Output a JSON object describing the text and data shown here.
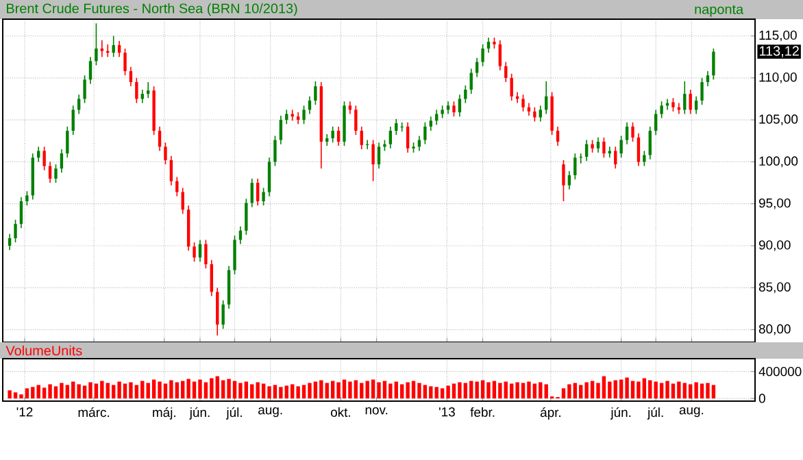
{
  "chart_data": [
    {
      "type": "candlestick",
      "title": "Brent Crude Futures - North Sea (BRN 10/2013)",
      "annotations": [
        "naponta",
        "113,12"
      ],
      "x": [
        "2011-12-19",
        "2011-12-24",
        "2011-12-29",
        "2012-01-03",
        "2012-01-08",
        "2012-01-13",
        "2012-01-18",
        "2012-01-23",
        "2012-01-28",
        "2012-02-02",
        "2012-02-07",
        "2012-02-12",
        "2012-02-17",
        "2012-02-22",
        "2012-02-27",
        "2012-03-03",
        "2012-03-08",
        "2012-03-13",
        "2012-03-18",
        "2012-03-23",
        "2012-03-28",
        "2012-04-02",
        "2012-04-07",
        "2012-04-12",
        "2012-04-17",
        "2012-04-22",
        "2012-04-27",
        "2012-05-02",
        "2012-05-07",
        "2012-05-12",
        "2012-05-17",
        "2012-05-22",
        "2012-05-27",
        "2012-06-01",
        "2012-06-06",
        "2012-06-11",
        "2012-06-16",
        "2012-06-21",
        "2012-06-26",
        "2012-07-01",
        "2012-07-06",
        "2012-07-11",
        "2012-07-16",
        "2012-07-21",
        "2012-07-26",
        "2012-07-31",
        "2012-08-05",
        "2012-08-10",
        "2012-08-15",
        "2012-08-20",
        "2012-08-25",
        "2012-08-30",
        "2012-09-04",
        "2012-09-09",
        "2012-09-14",
        "2012-09-19",
        "2012-09-24",
        "2012-09-29",
        "2012-10-04",
        "2012-10-09",
        "2012-10-14",
        "2012-10-19",
        "2012-10-24",
        "2012-10-29",
        "2012-11-03",
        "2012-11-08",
        "2012-11-13",
        "2012-11-18",
        "2012-11-23",
        "2012-11-28",
        "2012-12-03",
        "2012-12-08",
        "2012-12-13",
        "2012-12-18",
        "2012-12-23",
        "2012-12-28",
        "2013-01-02",
        "2013-01-07",
        "2013-01-12",
        "2013-01-17",
        "2013-01-22",
        "2013-01-27",
        "2013-02-01",
        "2013-02-06",
        "2013-02-11",
        "2013-02-16",
        "2013-02-21",
        "2013-02-26",
        "2013-03-03",
        "2013-03-08",
        "2013-03-13",
        "2013-03-18",
        "2013-03-23",
        "2013-03-28",
        "2013-04-02",
        "2013-04-07",
        "2013-04-12",
        "2013-04-17",
        "2013-04-22",
        "2013-04-27",
        "2013-05-02",
        "2013-05-07",
        "2013-05-12",
        "2013-05-17",
        "2013-05-22",
        "2013-05-27",
        "2013-06-01",
        "2013-06-06",
        "2013-06-11",
        "2013-06-16",
        "2013-06-21",
        "2013-06-26",
        "2013-07-01",
        "2013-07-06",
        "2013-07-11",
        "2013-07-16",
        "2013-07-21",
        "2013-07-26",
        "2013-07-31",
        "2013-08-05",
        "2013-08-10",
        "2013-08-15",
        "2013-08-20"
      ],
      "ohlc": [
        [
          90.0,
          91.4,
          89.5,
          90.9
        ],
        [
          90.9,
          93.1,
          90.4,
          92.6
        ],
        [
          92.6,
          95.8,
          92.1,
          95.3
        ],
        [
          95.3,
          96.5,
          94.8,
          96.0
        ],
        [
          96.0,
          101.0,
          95.5,
          100.5
        ],
        [
          100.5,
          101.8,
          100.0,
          101.3
        ],
        [
          101.3,
          101.8,
          99.0,
          99.5
        ],
        [
          99.5,
          100.0,
          97.5,
          98.0
        ],
        [
          98.0,
          99.7,
          97.5,
          99.2
        ],
        [
          99.2,
          101.5,
          98.7,
          101.0
        ],
        [
          101.0,
          104.2,
          100.5,
          103.7
        ],
        [
          103.7,
          106.7,
          103.2,
          106.2
        ],
        [
          106.2,
          108.0,
          105.7,
          107.5
        ],
        [
          107.5,
          110.3,
          107.0,
          109.8
        ],
        [
          109.8,
          112.5,
          109.3,
          112.0
        ],
        [
          112.0,
          116.5,
          111.5,
          113.5
        ],
        [
          113.5,
          114.5,
          112.5,
          113.2
        ],
        [
          113.2,
          114.0,
          112.5,
          113.0
        ],
        [
          113.0,
          115.0,
          112.5,
          113.9
        ],
        [
          113.9,
          114.4,
          112.5,
          113.0
        ],
        [
          113.0,
          113.5,
          110.3,
          110.8
        ],
        [
          110.8,
          111.3,
          109.0,
          109.5
        ],
        [
          109.5,
          110.0,
          107.0,
          107.5
        ],
        [
          107.5,
          108.6,
          107.0,
          108.1
        ],
        [
          108.1,
          109.5,
          107.6,
          108.5
        ],
        [
          108.5,
          109.0,
          103.2,
          103.7
        ],
        [
          103.7,
          104.2,
          101.3,
          101.8
        ],
        [
          101.8,
          102.3,
          99.7,
          100.2
        ],
        [
          100.2,
          100.7,
          97.2,
          97.7
        ],
        [
          97.7,
          98.2,
          95.9,
          96.4
        ],
        [
          96.4,
          96.9,
          93.8,
          94.3
        ],
        [
          94.3,
          94.8,
          89.4,
          89.9
        ],
        [
          89.9,
          90.4,
          88.1,
          88.6
        ],
        [
          88.6,
          90.7,
          88.1,
          90.2
        ],
        [
          90.2,
          90.7,
          87.3,
          87.8
        ],
        [
          87.8,
          88.3,
          84.0,
          84.5
        ],
        [
          84.5,
          85.0,
          79.3,
          80.6
        ],
        [
          80.6,
          83.5,
          80.1,
          83.0
        ],
        [
          83.0,
          87.6,
          82.5,
          87.1
        ],
        [
          87.1,
          91.2,
          86.6,
          90.7
        ],
        [
          90.7,
          92.3,
          90.2,
          91.8
        ],
        [
          91.8,
          95.6,
          91.3,
          95.1
        ],
        [
          95.1,
          98.0,
          94.6,
          97.5
        ],
        [
          97.5,
          98.0,
          94.8,
          95.3
        ],
        [
          95.3,
          96.9,
          94.8,
          96.4
        ],
        [
          96.4,
          100.5,
          95.9,
          100.0
        ],
        [
          100.0,
          103.1,
          99.5,
          102.6
        ],
        [
          102.6,
          105.5,
          102.1,
          105.0
        ],
        [
          105.0,
          106.2,
          104.5,
          105.7
        ],
        [
          105.7,
          106.2,
          104.9,
          105.4
        ],
        [
          105.4,
          105.9,
          104.5,
          105.0
        ],
        [
          105.0,
          106.7,
          104.5,
          106.2
        ],
        [
          106.2,
          107.8,
          105.7,
          107.3
        ],
        [
          107.3,
          109.6,
          106.8,
          109.0
        ],
        [
          109.0,
          109.5,
          99.2,
          102.4
        ],
        [
          102.4,
          103.3,
          101.9,
          102.8
        ],
        [
          102.8,
          104.2,
          102.3,
          103.7
        ],
        [
          103.7,
          104.2,
          101.9,
          102.4
        ],
        [
          102.4,
          107.2,
          101.9,
          106.7
        ],
        [
          106.7,
          107.2,
          105.7,
          106.2
        ],
        [
          106.2,
          106.7,
          103.2,
          103.7
        ],
        [
          103.7,
          104.2,
          101.5,
          102.0
        ],
        [
          102.0,
          102.6,
          101.5,
          102.1
        ],
        [
          102.1,
          102.6,
          97.7,
          99.7
        ],
        [
          99.7,
          102.3,
          99.2,
          101.8
        ],
        [
          101.8,
          102.6,
          101.3,
          102.1
        ],
        [
          102.1,
          104.2,
          101.6,
          103.7
        ],
        [
          103.7,
          105.1,
          103.2,
          104.6
        ],
        [
          104.1,
          104.7,
          103.6,
          104.2
        ],
        [
          104.2,
          104.7,
          101.1,
          101.6
        ],
        [
          101.6,
          102.3,
          101.1,
          101.8
        ],
        [
          101.8,
          103.1,
          101.3,
          102.6
        ],
        [
          102.6,
          104.7,
          102.1,
          104.2
        ],
        [
          104.2,
          105.4,
          103.7,
          104.9
        ],
        [
          104.9,
          106.2,
          104.4,
          105.7
        ],
        [
          105.7,
          106.7,
          105.2,
          106.2
        ],
        [
          106.2,
          107.2,
          105.7,
          106.7
        ],
        [
          106.7,
          107.2,
          105.4,
          105.9
        ],
        [
          105.9,
          108.0,
          105.4,
          107.5
        ],
        [
          107.5,
          109.1,
          107.0,
          108.6
        ],
        [
          108.6,
          111.1,
          108.1,
          110.6
        ],
        [
          110.6,
          112.4,
          110.1,
          111.9
        ],
        [
          111.9,
          114.0,
          111.4,
          113.5
        ],
        [
          113.5,
          114.8,
          113.0,
          114.3
        ],
        [
          114.3,
          114.8,
          113.5,
          114.0
        ],
        [
          114.0,
          114.5,
          110.9,
          111.4
        ],
        [
          111.4,
          111.9,
          109.5,
          110.0
        ],
        [
          110.0,
          110.5,
          107.3,
          107.8
        ],
        [
          107.8,
          108.3,
          107.0,
          107.5
        ],
        [
          107.5,
          108.0,
          106.0,
          106.5
        ],
        [
          106.5,
          107.0,
          105.5,
          106.0
        ],
        [
          106.0,
          106.5,
          104.8,
          105.3
        ],
        [
          105.3,
          106.7,
          104.8,
          106.2
        ],
        [
          106.2,
          109.6,
          105.7,
          107.8
        ],
        [
          107.8,
          108.3,
          103.2,
          103.7
        ],
        [
          103.7,
          104.2,
          101.9,
          102.4
        ],
        [
          99.7,
          100.2,
          95.3,
          97.2
        ],
        [
          97.2,
          98.9,
          96.7,
          98.4
        ],
        [
          98.4,
          101.0,
          97.9,
          100.5
        ],
        [
          100.5,
          101.0,
          99.8,
          100.6
        ],
        [
          100.6,
          102.6,
          100.1,
          102.1
        ],
        [
          102.1,
          102.6,
          101.1,
          101.6
        ],
        [
          101.6,
          102.9,
          101.1,
          102.4
        ],
        [
          102.4,
          102.9,
          100.5,
          101.0
        ],
        [
          101.0,
          101.8,
          100.5,
          101.3
        ],
        [
          101.3,
          101.8,
          99.2,
          99.7
        ],
        [
          101.0,
          103.1,
          100.5,
          102.6
        ],
        [
          102.6,
          104.7,
          102.1,
          104.2
        ],
        [
          104.2,
          104.7,
          102.4,
          102.9
        ],
        [
          102.9,
          103.4,
          99.5,
          100.0
        ],
        [
          100.0,
          101.3,
          99.5,
          100.8
        ],
        [
          100.8,
          104.2,
          100.3,
          103.7
        ],
        [
          103.7,
          106.2,
          103.2,
          105.7
        ],
        [
          105.7,
          107.2,
          105.2,
          106.7
        ],
        [
          106.7,
          107.5,
          106.2,
          107.0
        ],
        [
          107.1,
          107.6,
          106.0,
          106.5
        ],
        [
          106.5,
          107.0,
          105.7,
          106.2
        ],
        [
          106.2,
          109.6,
          105.7,
          108.1
        ],
        [
          108.1,
          108.6,
          105.7,
          106.2
        ],
        [
          106.2,
          107.8,
          105.7,
          107.3
        ],
        [
          107.3,
          110.0,
          106.8,
          109.5
        ],
        [
          109.5,
          110.8,
          109.0,
          110.3
        ],
        [
          110.3,
          113.5,
          109.8,
          113.12
        ]
      ],
      "xlim": [
        "2011-12-13",
        "2013-09-25"
      ],
      "xticks": [
        {
          "value": "2012-01-01",
          "label": null
        },
        {
          "value": "2012-03-01",
          "label": null
        },
        {
          "value": "2012-05-01",
          "label": null
        },
        {
          "value": "2012-06-01",
          "label": null
        },
        {
          "value": "2012-07-01",
          "label": null
        },
        {
          "value": "2012-08-01",
          "label": null
        },
        {
          "value": "2012-10-01",
          "label": null
        },
        {
          "value": "2012-11-01",
          "label": null
        },
        {
          "value": "2013-01-01",
          "label": null
        },
        {
          "value": "2013-02-01",
          "label": null
        },
        {
          "value": "2013-04-01",
          "label": null
        },
        {
          "value": "2013-06-01",
          "label": null
        },
        {
          "value": "2013-07-01",
          "label": null
        },
        {
          "value": "2013-08-01",
          "label": null
        }
      ],
      "ylim": [
        78.5,
        117
      ],
      "yticks": [
        {
          "value": 80,
          "label": "80,00"
        },
        {
          "value": 85,
          "label": "85,00"
        },
        {
          "value": 90,
          "label": "90,00"
        },
        {
          "value": 95,
          "label": "95,00"
        },
        {
          "value": 100,
          "label": "100,00"
        },
        {
          "value": 105,
          "label": "105,00"
        },
        {
          "value": 110,
          "label": "110,00"
        },
        {
          "value": 115,
          "label": "115,00"
        }
      ],
      "grid": true,
      "tick_labels": "y"
    },
    {
      "type": "bar",
      "title": "VolumeUnits",
      "color": "#ff0000",
      "x": [
        "2011-12-19",
        "2011-12-24",
        "2011-12-29",
        "2012-01-03",
        "2012-01-08",
        "2012-01-13",
        "2012-01-18",
        "2012-01-23",
        "2012-01-28",
        "2012-02-02",
        "2012-02-07",
        "2012-02-12",
        "2012-02-17",
        "2012-02-22",
        "2012-02-27",
        "2012-03-03",
        "2012-03-08",
        "2012-03-13",
        "2012-03-18",
        "2012-03-23",
        "2012-03-28",
        "2012-04-02",
        "2012-04-07",
        "2012-04-12",
        "2012-04-17",
        "2012-04-22",
        "2012-04-27",
        "2012-05-02",
        "2012-05-07",
        "2012-05-12",
        "2012-05-17",
        "2012-05-22",
        "2012-05-27",
        "2012-06-01",
        "2012-06-06",
        "2012-06-11",
        "2012-06-16",
        "2012-06-21",
        "2012-06-26",
        "2012-07-01",
        "2012-07-06",
        "2012-07-11",
        "2012-07-16",
        "2012-07-21",
        "2012-07-26",
        "2012-07-31",
        "2012-08-05",
        "2012-08-10",
        "2012-08-15",
        "2012-08-20",
        "2012-08-25",
        "2012-08-30",
        "2012-09-04",
        "2012-09-09",
        "2012-09-14",
        "2012-09-19",
        "2012-09-24",
        "2012-09-29",
        "2012-10-04",
        "2012-10-09",
        "2012-10-14",
        "2012-10-19",
        "2012-10-24",
        "2012-10-29",
        "2012-11-03",
        "2012-11-08",
        "2012-11-13",
        "2012-11-18",
        "2012-11-23",
        "2012-11-28",
        "2012-12-03",
        "2012-12-08",
        "2012-12-13",
        "2012-12-18",
        "2012-12-23",
        "2012-12-28",
        "2013-01-02",
        "2013-01-07",
        "2013-01-12",
        "2013-01-17",
        "2013-01-22",
        "2013-01-27",
        "2013-02-01",
        "2013-02-06",
        "2013-02-11",
        "2013-02-16",
        "2013-02-21",
        "2013-02-26",
        "2013-03-03",
        "2013-03-08",
        "2013-03-13",
        "2013-03-18",
        "2013-03-23",
        "2013-03-28",
        "2013-04-02",
        "2013-04-07",
        "2013-04-12",
        "2013-04-17",
        "2013-04-22",
        "2013-04-27",
        "2013-05-02",
        "2013-05-07",
        "2013-05-12",
        "2013-05-17",
        "2013-05-22",
        "2013-05-27",
        "2013-06-01",
        "2013-06-06",
        "2013-06-11",
        "2013-06-16",
        "2013-06-21",
        "2013-06-26",
        "2013-07-01",
        "2013-07-06",
        "2013-07-11",
        "2013-07-16",
        "2013-07-21",
        "2013-07-26",
        "2013-07-31",
        "2013-08-05",
        "2013-08-10",
        "2013-08-15",
        "2013-08-20"
      ],
      "values": [
        120000,
        90000,
        60000,
        150000,
        170000,
        200000,
        160000,
        210000,
        180000,
        230000,
        200000,
        250000,
        210000,
        190000,
        240000,
        220000,
        260000,
        230000,
        200000,
        250000,
        220000,
        240000,
        200000,
        260000,
        230000,
        280000,
        250000,
        220000,
        270000,
        240000,
        260000,
        290000,
        250000,
        280000,
        240000,
        300000,
        330000,
        270000,
        290000,
        260000,
        230000,
        250000,
        210000,
        240000,
        220000,
        180000,
        200000,
        170000,
        190000,
        210000,
        180000,
        200000,
        230000,
        250000,
        270000,
        230000,
        260000,
        240000,
        280000,
        250000,
        270000,
        230000,
        260000,
        280000,
        240000,
        260000,
        220000,
        250000,
        210000,
        240000,
        260000,
        230000,
        200000,
        180000,
        170000,
        150000,
        190000,
        220000,
        240000,
        230000,
        260000,
        250000,
        270000,
        240000,
        260000,
        230000,
        250000,
        220000,
        240000,
        230000,
        250000,
        220000,
        240000,
        210000,
        30000,
        20000,
        150000,
        210000,
        230000,
        200000,
        240000,
        260000,
        230000,
        330000,
        250000,
        270000,
        280000,
        310000,
        260000,
        250000,
        300000,
        270000,
        250000,
        230000,
        260000,
        220000,
        250000,
        230000,
        210000,
        240000,
        220000,
        230000,
        200000
      ],
      "xlim": [
        "2011-12-13",
        "2013-09-25"
      ],
      "xticks": [
        {
          "value": "2012-01-01",
          "label": "'12"
        },
        {
          "value": "2012-03-01",
          "label": "márc."
        },
        {
          "value": "2012-05-01",
          "label": "máj."
        },
        {
          "value": "2012-06-01",
          "label": "jún."
        },
        {
          "value": "2012-07-01",
          "label": "júl."
        },
        {
          "value": "2012-08-01",
          "label": "aug."
        },
        {
          "value": "2012-10-01",
          "label": "okt."
        },
        {
          "value": "2012-11-01",
          "label": "nov."
        },
        {
          "value": "2013-01-01",
          "label": "'13"
        },
        {
          "value": "2013-02-01",
          "label": "febr."
        },
        {
          "value": "2013-04-01",
          "label": "ápr."
        },
        {
          "value": "2013-06-01",
          "label": "jún."
        },
        {
          "value": "2013-07-01",
          "label": "júl."
        },
        {
          "value": "2013-08-01",
          "label": "aug."
        }
      ],
      "ylim": [
        -40000,
        590000
      ],
      "yticks": [
        0,
        400000
      ],
      "grid": true
    }
  ]
}
